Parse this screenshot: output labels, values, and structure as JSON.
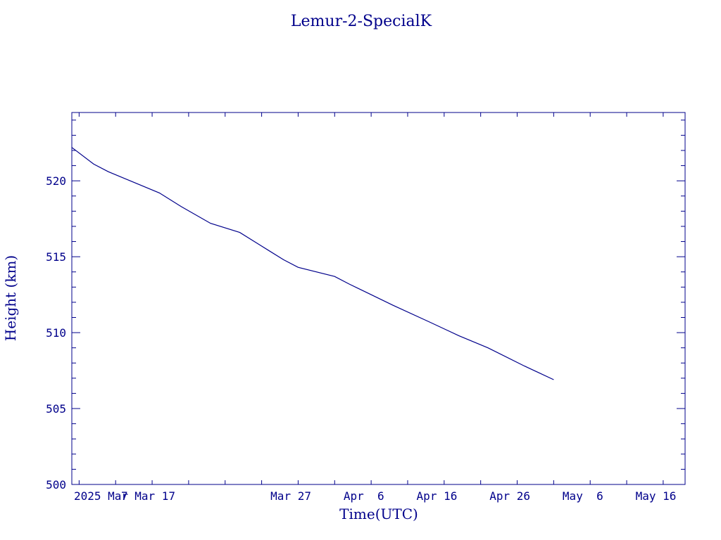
{
  "chart_data": {
    "type": "line",
    "title": "Lemur-2-SpecialK",
    "xlabel": "Time(UTC)",
    "ylabel": "Height (km)",
    "x_axis_type": "date",
    "xlim": [
      "2025-02-25",
      "2025-05-20"
    ],
    "ylim": [
      500,
      524.5
    ],
    "x_tick_labels": [
      {
        "date": "2025-03-01",
        "label": "2025 Mar"
      },
      {
        "date": "2025-03-07",
        "label": " 7 Mar 17"
      },
      {
        "date": "2025-03-27",
        "label": "Mar 27"
      },
      {
        "date": "2025-04-06",
        "label": "Apr  6"
      },
      {
        "date": "2025-04-16",
        "label": "Apr 16"
      },
      {
        "date": "2025-04-26",
        "label": "Apr 26"
      },
      {
        "date": "2025-05-06",
        "label": "May  6"
      },
      {
        "date": "2025-05-16",
        "label": "May 16"
      }
    ],
    "y_ticks": [
      500,
      505,
      510,
      515,
      520
    ],
    "grid": false,
    "color": "#00008b",
    "series": [
      {
        "name": "",
        "x": [
          "2025-02-25",
          "2025-02-28",
          "2025-03-02",
          "2025-03-05",
          "2025-03-09",
          "2025-03-12",
          "2025-03-16",
          "2025-03-20",
          "2025-03-22",
          "2025-03-23",
          "2025-03-26",
          "2025-03-28",
          "2025-04-02",
          "2025-04-04",
          "2025-04-07",
          "2025-04-10",
          "2025-04-15",
          "2025-04-19",
          "2025-04-23",
          "2025-04-28",
          "2025-05-02"
        ],
        "values": [
          522.2,
          521.1,
          520.6,
          520.0,
          519.2,
          518.3,
          517.2,
          516.6,
          516.0,
          515.7,
          514.8,
          514.3,
          513.7,
          513.2,
          512.5,
          511.8,
          510.7,
          509.8,
          509.0,
          507.8,
          506.9
        ]
      }
    ]
  }
}
